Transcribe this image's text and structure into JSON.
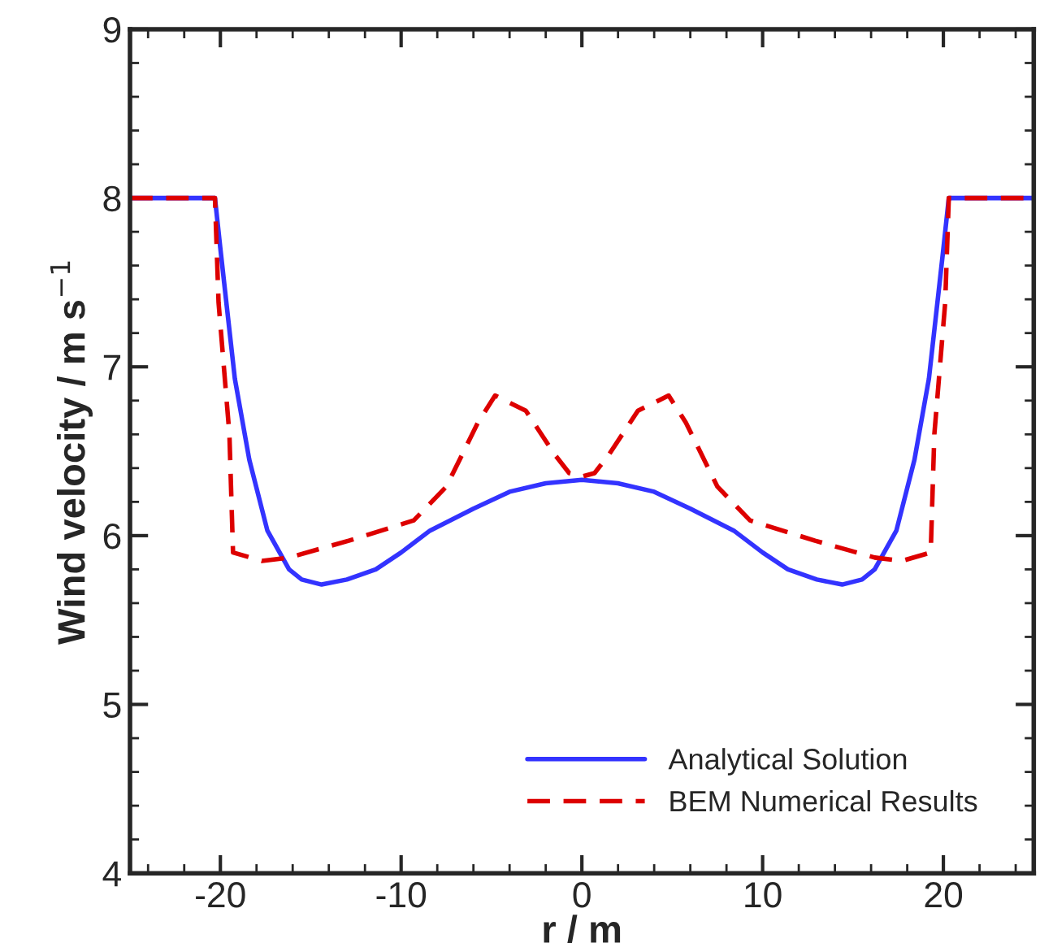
{
  "chart_data": {
    "type": "line",
    "xlabel": "r / m",
    "ylabel": "Wind velocity / m s$^{−1}$",
    "xlim": [
      -25,
      25
    ],
    "ylim": [
      4,
      9
    ],
    "xticks": [
      -20,
      -10,
      0,
      10,
      20
    ],
    "yticks": [
      4,
      5,
      6,
      7,
      8,
      9
    ],
    "grid": false,
    "legend": "bottom right",
    "series": [
      {
        "name": "Analytical Solution",
        "color": "#3333ff",
        "line_style": "solid",
        "x": [
          -25,
          -20.3,
          -20.0,
          -19.7,
          -19.2,
          -18.4,
          -17.4,
          -16.2,
          -15.5,
          -14.4,
          -13,
          -11.4,
          -10,
          -8.4,
          -6,
          -4.0,
          -2,
          0,
          2,
          4.0,
          6,
          8.4,
          10,
          11.4,
          13,
          14.4,
          15.5,
          16.2,
          17.4,
          18.4,
          19.2,
          19.7,
          20.0,
          20.3,
          25
        ],
        "values": [
          8,
          8,
          7.7,
          7.41,
          6.93,
          6.45,
          6.03,
          5.8,
          5.74,
          5.71,
          5.74,
          5.8,
          5.9,
          6.03,
          6.16,
          6.26,
          6.31,
          6.33,
          6.31,
          6.26,
          6.16,
          6.03,
          5.9,
          5.8,
          5.74,
          5.71,
          5.74,
          5.8,
          6.03,
          6.45,
          6.93,
          7.41,
          7.7,
          8,
          8
        ]
      },
      {
        "name": "BEM Numerical Results",
        "color": "#dd0000",
        "line_style": "dashed",
        "x": [
          -25,
          -20.3,
          -20.1,
          -19.5,
          -19.3,
          -17.7,
          -16.2,
          -12.9,
          -9.3,
          -7.5,
          -5.75,
          -4.8,
          -3.1,
          -1.5,
          -0.7,
          0,
          0.7,
          1.5,
          3.1,
          4.8,
          5.75,
          7.5,
          9.3,
          12.9,
          16.2,
          17.7,
          19.3,
          19.5,
          20.1,
          20.3,
          25
        ],
        "values": [
          8,
          8,
          7.38,
          6.6,
          5.9,
          5.85,
          5.87,
          5.97,
          6.09,
          6.29,
          6.67,
          6.83,
          6.74,
          6.48,
          6.37,
          6.35,
          6.37,
          6.48,
          6.74,
          6.83,
          6.67,
          6.29,
          6.09,
          5.97,
          5.87,
          5.85,
          5.9,
          6.6,
          7.38,
          8,
          8
        ]
      }
    ]
  }
}
